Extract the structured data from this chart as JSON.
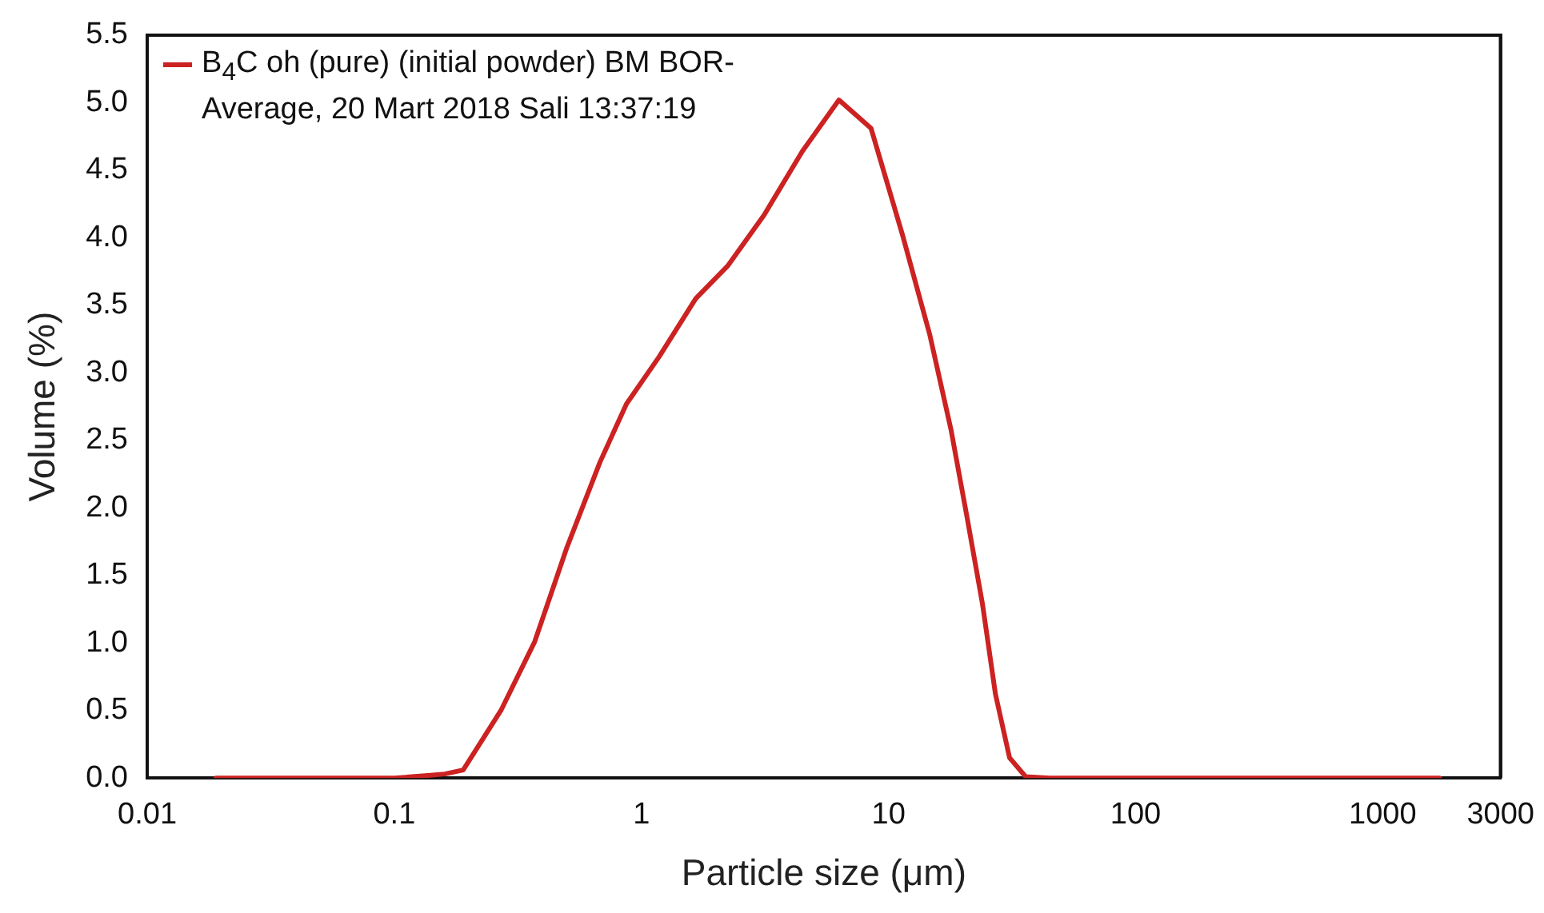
{
  "chart_data": {
    "type": "line",
    "xlabel": "Particle size (μm)",
    "ylabel": "Volume (%)",
    "log": "x",
    "xlim": [
      0.01,
      3000
    ],
    "xticks": [
      0.01,
      0.1,
      1,
      10,
      100,
      1000,
      3000
    ],
    "ylim": [
      0,
      5.5
    ],
    "yticks": [
      {
        "value": 0,
        "label": "0.0"
      },
      {
        "value": 0.5,
        "label": "0.5"
      },
      {
        "value": 1,
        "label": "1.0"
      },
      {
        "value": 1.5,
        "label": "1.5"
      },
      {
        "value": 2,
        "label": "2.0"
      },
      {
        "value": 2.5,
        "label": "2.5"
      },
      {
        "value": 3,
        "label": "3.0"
      },
      {
        "value": 3.5,
        "label": "3.5"
      },
      {
        "value": 4,
        "label": "4.0"
      },
      {
        "value": 4.5,
        "label": "4.5"
      },
      {
        "value": 5,
        "label": "5.0"
      },
      {
        "value": 5.5,
        "label": "5.5"
      }
    ],
    "grid": false,
    "legend": "top left",
    "marker": "none",
    "line_style": "solid",
    "series": [
      {
        "name": "B$_{4}$C oh (pure) (initial powder) BM BOR-Average, 20 Mart 2018 Sali 13:37:19",
        "color": "#cc2222",
        "x": [
          0.019,
          0.1,
          0.14,
          0.16,
          0.19,
          0.27,
          0.37,
          0.5,
          0.68,
          0.87,
          1.18,
          1.66,
          2.23,
          3.14,
          4.48,
          6.3,
          8.5,
          11.4,
          14.7,
          17.9,
          20.7,
          24.0,
          27.1,
          30.9,
          35.9,
          45,
          100,
          1700
        ],
        "values": [
          0,
          0,
          0.02,
          0.03,
          0.06,
          0.5,
          1.01,
          1.71,
          2.34,
          2.77,
          3.12,
          3.55,
          3.79,
          4.17,
          4.64,
          5.02,
          4.81,
          4.02,
          3.28,
          2.58,
          1.95,
          1.29,
          0.62,
          0.15,
          0.01,
          0,
          0,
          0
        ]
      }
    ]
  }
}
